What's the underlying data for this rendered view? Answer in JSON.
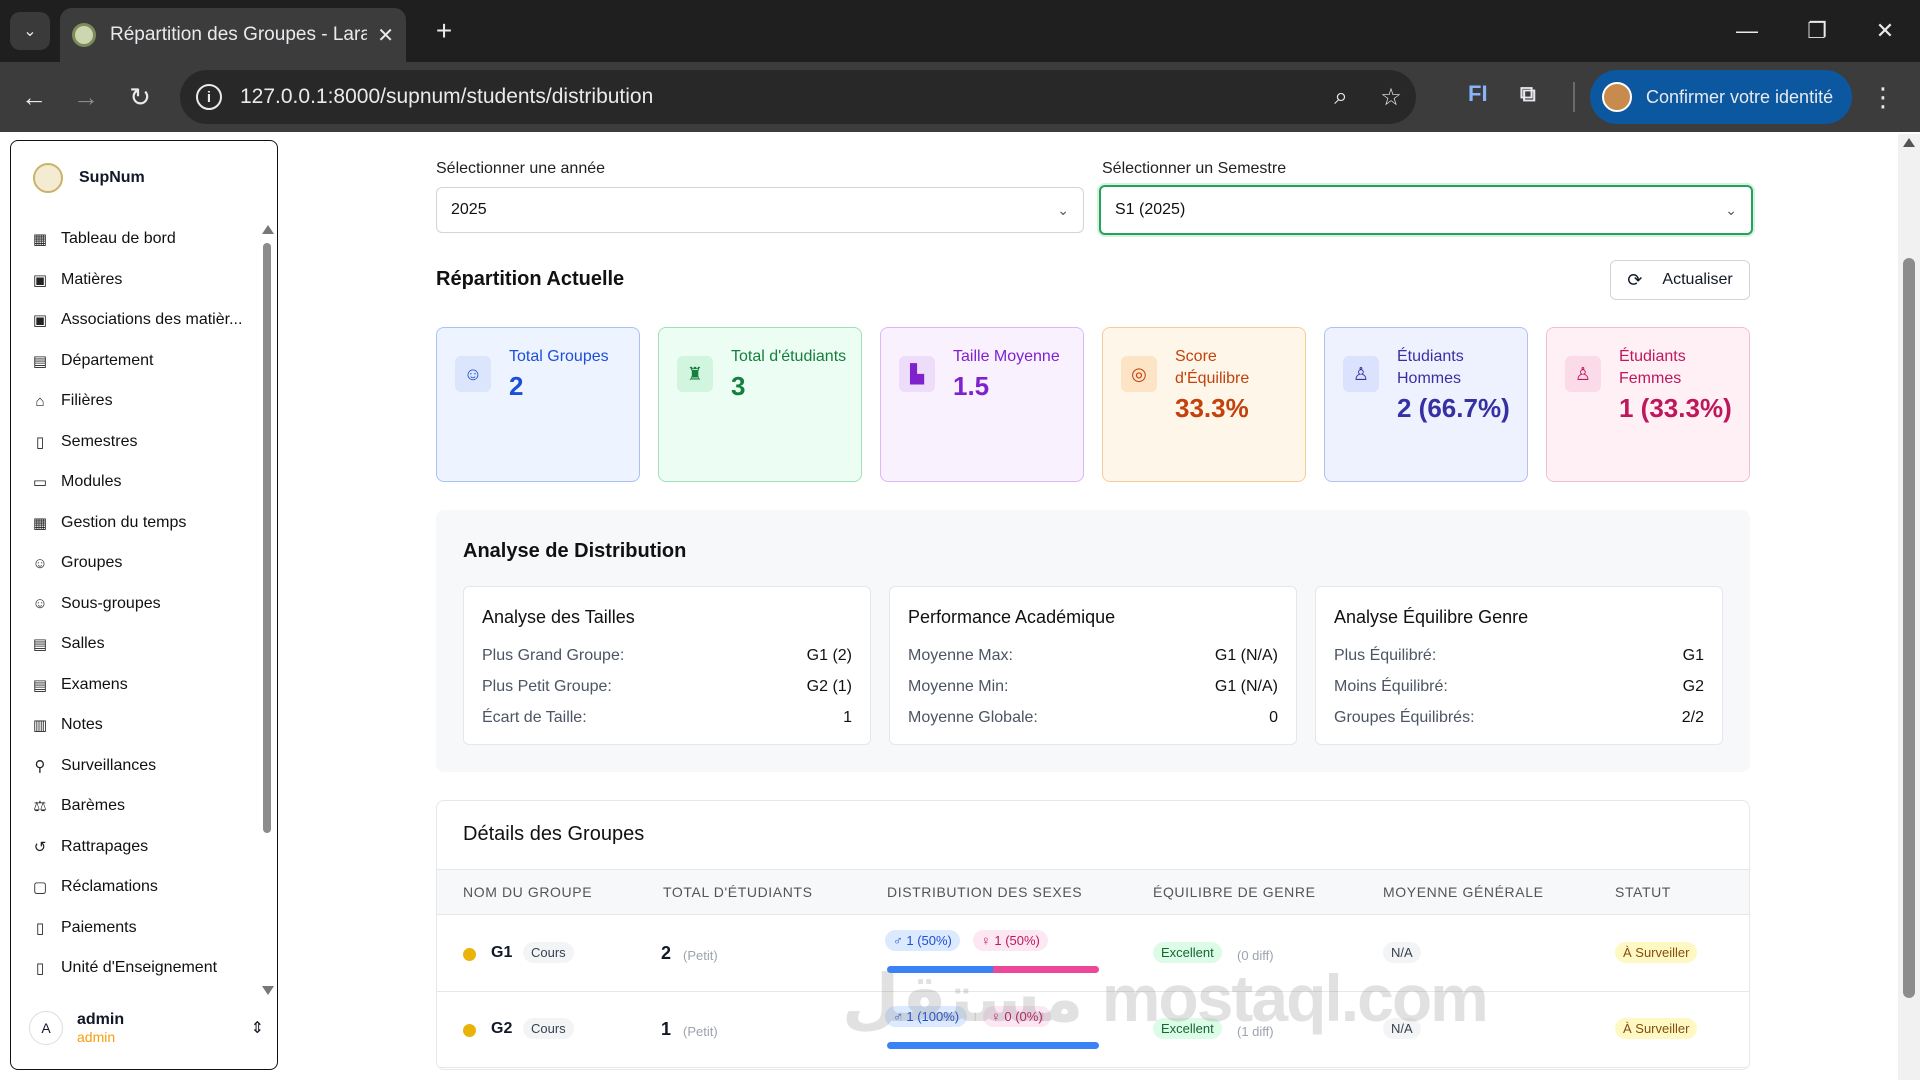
{
  "browser": {
    "tab_title": "Répartition des Groupes - Larav",
    "url": "127.0.0.1:8000/supnum/students/distribution",
    "identity_button": "Confirmer votre identité",
    "extension_label": "FI"
  },
  "sidebar": {
    "brand": "SupNum",
    "items": [
      {
        "label": "Tableau de bord",
        "icon": "grid-icon"
      },
      {
        "label": "Matières",
        "icon": "book-badge-icon"
      },
      {
        "label": "Associations des matièr...",
        "icon": "book-badge-icon"
      },
      {
        "label": "Département",
        "icon": "building-icon"
      },
      {
        "label": "Filières",
        "icon": "graduation-cap-icon"
      },
      {
        "label": "Semestres",
        "icon": "open-book-icon"
      },
      {
        "label": "Modules",
        "icon": "folder-icon"
      },
      {
        "label": "Gestion du temps",
        "icon": "calendar-icon"
      },
      {
        "label": "Groupes",
        "icon": "users-icon"
      },
      {
        "label": "Sous-groupes",
        "icon": "users-icon"
      },
      {
        "label": "Salles",
        "icon": "building-icon"
      },
      {
        "label": "Examens",
        "icon": "document-icon"
      },
      {
        "label": "Notes",
        "icon": "clipboard-icon"
      },
      {
        "label": "Surveillances",
        "icon": "user-watch-icon"
      },
      {
        "label": "Barèmes",
        "icon": "scale-icon"
      },
      {
        "label": "Rattrapages",
        "icon": "rotate-icon"
      },
      {
        "label": "Réclamations",
        "icon": "message-icon"
      },
      {
        "label": "Paiements",
        "icon": "open-book-icon"
      },
      {
        "label": "Unité d'Enseignement",
        "icon": "book-icon"
      }
    ],
    "user": {
      "initial": "A",
      "name": "admin",
      "role": "admin"
    }
  },
  "filters": {
    "year_label": "Sélectionner une année",
    "year_value": "2025",
    "semester_label": "Sélectionner un Semestre",
    "semester_value": "S1 (2025)"
  },
  "current": {
    "title": "Répartition Actuelle",
    "refresh_label": "Actualiser",
    "stats": [
      {
        "title": "Total Groupes",
        "value": "2",
        "icon": "users-group-icon",
        "bg": "#eef4ff",
        "border": "#a9c2f5",
        "color": "#1d4ed8",
        "icon_bg": "#dbe6fd"
      },
      {
        "title": "Total d'étudiants",
        "value": "3",
        "icon": "student-icon",
        "bg": "#ecfdf3",
        "border": "#9fe0b9",
        "color": "#15803d",
        "icon_bg": "#d1f5df"
      },
      {
        "title": "Taille Moyenne",
        "value": "1.5",
        "icon": "bar-chart-icon",
        "bg": "#faf1ff",
        "border": "#dbb8f4",
        "color": "#7e22ce",
        "icon_bg": "#eedcfb"
      },
      {
        "title": "Score d'Équilibre",
        "value": "33.3%",
        "icon": "check-circle-icon",
        "bg": "#fff6ea",
        "border": "#f6cc98",
        "color": "#c2410c",
        "icon_bg": "#fde4c6"
      },
      {
        "title": "Étudiants Hommes",
        "value": "2 (66.7%)",
        "icon": "user-icon",
        "bg": "#eef2ff",
        "border": "#b4c0f4",
        "color": "#3730a3",
        "icon_bg": "#dbe2fd"
      },
      {
        "title": "Étudiants Femmes",
        "value": "1 (33.3%)",
        "icon": "user-icon",
        "bg": "#fff0f6",
        "border": "#f6bcd6",
        "color": "#be185d",
        "icon_bg": "#fcdbe9"
      }
    ]
  },
  "analysis": {
    "title": "Analyse de Distribution",
    "cards": [
      {
        "title": "Analyse des Tailles",
        "rows": [
          [
            "Plus Grand Groupe:",
            "G1 (2)"
          ],
          [
            "Plus Petit Groupe:",
            "G2 (1)"
          ],
          [
            "Écart de Taille:",
            "1"
          ]
        ]
      },
      {
        "title": "Performance Académique",
        "rows": [
          [
            "Moyenne Max:",
            "G1 (N/A)"
          ],
          [
            "Moyenne Min:",
            "G1 (N/A)"
          ],
          [
            "Moyenne Globale:",
            "0"
          ]
        ]
      },
      {
        "title": "Analyse Équilibre Genre",
        "rows": [
          [
            "Plus Équilibré:",
            "G1"
          ],
          [
            "Moins Équilibré:",
            "G2"
          ],
          [
            "Groupes Équilibrés:",
            "2/2"
          ]
        ]
      }
    ]
  },
  "details": {
    "title": "Détails des Groupes",
    "columns": [
      "NOM DU GROUPE",
      "TOTAL D'ÉTUDIANTS",
      "DISTRIBUTION DES SEXES",
      "ÉQUILIBRE DE GENRE",
      "MOYENNE GÉNÉRALE",
      "STATUT"
    ],
    "rows": [
      {
        "name": "G1",
        "type": "Cours",
        "total": "2",
        "size": "(Petit)",
        "male": "♂ 1 (50%)",
        "female": "♀ 1 (50%)",
        "male_fraction": 0.5,
        "balance": "Excellent",
        "diff": "(0 diff)",
        "avg": "N/A",
        "status": "À Surveiller"
      },
      {
        "name": "G2",
        "type": "Cours",
        "total": "1",
        "size": "(Petit)",
        "male": "♂ 1 (100%)",
        "female": "♀ 0 (0%)",
        "male_fraction": 1.0,
        "balance": "Excellent",
        "diff": "(1 diff)",
        "avg": "N/A",
        "status": "À Surveiller"
      }
    ]
  },
  "watermark": "مستقل mostaql.com"
}
